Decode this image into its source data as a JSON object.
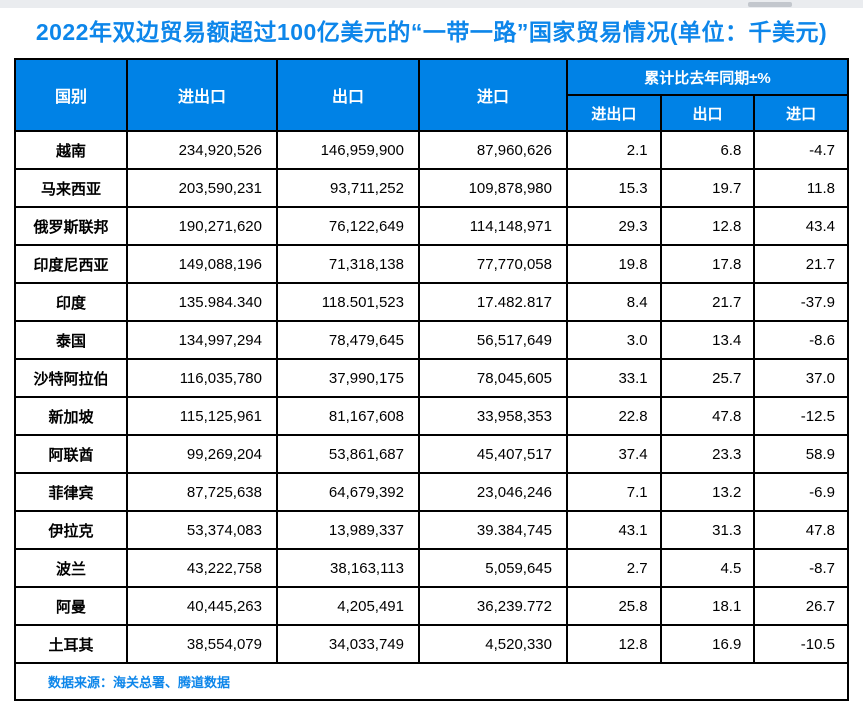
{
  "colors": {
    "accent": "#0d86ea",
    "header_bg": "#0082e6",
    "border": "#000000"
  },
  "page": {
    "title": "2022年双边贸易额超过100亿美元的“一带一路”国家贸易情况(单位：千美元)",
    "source_note": "数据来源：海关总署、腾道数据"
  },
  "table": {
    "header": {
      "country": "国别",
      "import_export": "进出口",
      "export": "出口",
      "import": "进口",
      "yoy_group": "累计比去年同期±%",
      "yoy_import_export": "进出口",
      "yoy_export": "出口",
      "yoy_import": "进口"
    },
    "rows": [
      {
        "country": "越南",
        "ie": "234,920,526",
        "ex": "146,959,900",
        "im": "87,960,626",
        "yoy_ie": "2.1",
        "yoy_ex": "6.8",
        "yoy_im": "-4.7"
      },
      {
        "country": "马来西亚",
        "ie": "203,590,231",
        "ex": "93,711,252",
        "im": "109,878,980",
        "yoy_ie": "15.3",
        "yoy_ex": "19.7",
        "yoy_im": "11.8"
      },
      {
        "country": "俄罗斯联邦",
        "ie": "190,271,620",
        "ex": "76,122,649",
        "im": "114,148,971",
        "yoy_ie": "29.3",
        "yoy_ex": "12.8",
        "yoy_im": "43.4"
      },
      {
        "country": "印度尼西亚",
        "ie": "149,088,196",
        "ex": "71,318,138",
        "im": "77,770,058",
        "yoy_ie": "19.8",
        "yoy_ex": "17.8",
        "yoy_im": "21.7"
      },
      {
        "country": "印度",
        "ie": "135.984.340",
        "ex": "118.501,523",
        "im": "17.482.817",
        "yoy_ie": "8.4",
        "yoy_ex": "21.7",
        "yoy_im": "-37.9"
      },
      {
        "country": "泰国",
        "ie": "134,997,294",
        "ex": "78,479,645",
        "im": "56,517,649",
        "yoy_ie": "3.0",
        "yoy_ex": "13.4",
        "yoy_im": "-8.6"
      },
      {
        "country": "沙特阿拉伯",
        "ie": "116,035,780",
        "ex": "37,990,175",
        "im": "78,045,605",
        "yoy_ie": "33.1",
        "yoy_ex": "25.7",
        "yoy_im": "37.0"
      },
      {
        "country": "新加坡",
        "ie": "115,125,961",
        "ex": "81,167,608",
        "im": "33,958,353",
        "yoy_ie": "22.8",
        "yoy_ex": "47.8",
        "yoy_im": "-12.5"
      },
      {
        "country": "阿联酋",
        "ie": "99,269,204",
        "ex": "53,861,687",
        "im": "45,407,517",
        "yoy_ie": "37.4",
        "yoy_ex": "23.3",
        "yoy_im": "58.9"
      },
      {
        "country": "菲律宾",
        "ie": "87,725,638",
        "ex": "64,679,392",
        "im": "23,046,246",
        "yoy_ie": "7.1",
        "yoy_ex": "13.2",
        "yoy_im": "-6.9"
      },
      {
        "country": "伊拉克",
        "ie": "53,374,083",
        "ex": "13,989,337",
        "im": "39.384,745",
        "yoy_ie": "43.1",
        "yoy_ex": "31.3",
        "yoy_im": "47.8"
      },
      {
        "country": "波兰",
        "ie": "43,222,758",
        "ex": "38,163,113",
        "im": "5,059,645",
        "yoy_ie": "2.7",
        "yoy_ex": "4.5",
        "yoy_im": "-8.7"
      },
      {
        "country": "阿曼",
        "ie": "40,445,263",
        "ex": "4,205,491",
        "im": "36,239.772",
        "yoy_ie": "25.8",
        "yoy_ex": "18.1",
        "yoy_im": "26.7"
      },
      {
        "country": "土耳其",
        "ie": "38,554,079",
        "ex": "34,033,749",
        "im": "4,520,330",
        "yoy_ie": "12.8",
        "yoy_ex": "16.9",
        "yoy_im": "-10.5"
      }
    ]
  }
}
